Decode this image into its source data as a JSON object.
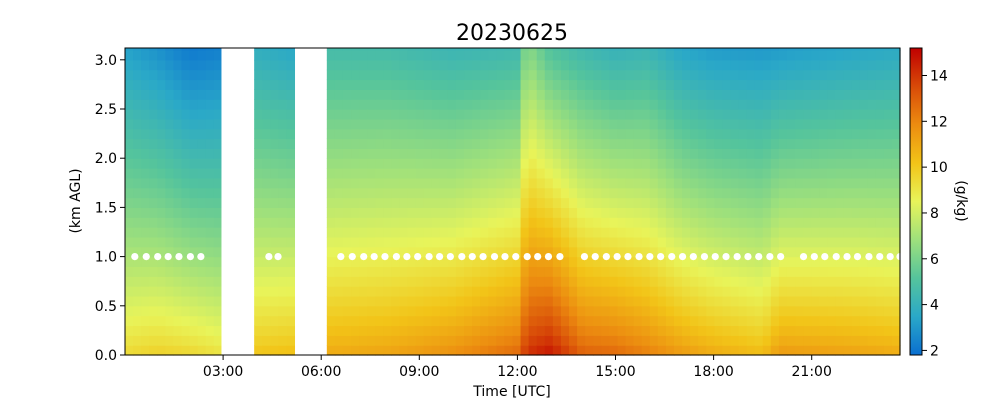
{
  "chart_data": {
    "type": "heatmap",
    "title": "20230625",
    "xlabel": "Time [UTC]",
    "ylabel": "(km AGL)",
    "colorbar_label": "(g/kg)",
    "x_range_hours": [
      0,
      23.7
    ],
    "ylim": [
      0,
      3.12
    ],
    "x_ticks": [
      {
        "hour": 3,
        "label": "03:00"
      },
      {
        "hour": 6,
        "label": "06:00"
      },
      {
        "hour": 9,
        "label": "09:00"
      },
      {
        "hour": 12,
        "label": "12:00"
      },
      {
        "hour": 15,
        "label": "15:00"
      },
      {
        "hour": 18,
        "label": "18:00"
      },
      {
        "hour": 21,
        "label": "21:00"
      }
    ],
    "y_ticks": [
      {
        "value": 0.0,
        "label": "0.0"
      },
      {
        "value": 0.5,
        "label": "0.5"
      },
      {
        "value": 1.0,
        "label": "1.0"
      },
      {
        "value": 1.5,
        "label": "1.5"
      },
      {
        "value": 2.0,
        "label": "2.0"
      },
      {
        "value": 2.5,
        "label": "2.5"
      },
      {
        "value": 3.0,
        "label": "3.0"
      }
    ],
    "colorbar": {
      "range": [
        1.8,
        15.2
      ],
      "ticks": [
        {
          "value": 2,
          "label": "2"
        },
        {
          "value": 4,
          "label": "4"
        },
        {
          "value": 6,
          "label": "6"
        },
        {
          "value": 8,
          "label": "8"
        },
        {
          "value": 10,
          "label": "10"
        },
        {
          "value": 12,
          "label": "12"
        },
        {
          "value": 14,
          "label": "14"
        }
      ],
      "colormap": [
        "#0a6fd0",
        "#2aa8c8",
        "#55c49c",
        "#9ee07c",
        "#e8f45a",
        "#f2c418",
        "#ec8c10",
        "#d84a08",
        "#c00000"
      ]
    },
    "missing_data_hours": [
      [
        2.95,
        3.88
      ],
      [
        5.2,
        6.1
      ]
    ],
    "pbl_height_km": 1.0,
    "pbl_marker_hours": [
      0.3,
      0.65,
      1.0,
      1.32,
      1.65,
      2.0,
      2.32,
      4.4,
      4.68,
      6.6,
      6.95,
      7.3,
      7.62,
      7.95,
      8.3,
      8.62,
      8.95,
      9.3,
      9.62,
      9.95,
      10.3,
      10.62,
      10.95,
      11.3,
      11.62,
      11.95,
      12.3,
      12.62,
      12.95,
      13.3,
      14.05,
      14.38,
      14.72,
      15.05,
      15.38,
      15.72,
      16.05,
      16.38,
      16.72,
      17.05,
      17.38,
      17.72,
      18.05,
      18.38,
      18.72,
      19.05,
      19.38,
      19.72,
      20.05,
      20.75,
      21.08,
      21.4,
      21.75,
      22.08,
      22.4,
      22.75,
      23.08,
      23.4,
      23.7
    ],
    "humidity_profile": {
      "surface_gkg_by_hour": [
        {
          "hour": 0.0,
          "value": 9.5
        },
        {
          "hour": 1.0,
          "value": 9.8
        },
        {
          "hour": 2.0,
          "value": 9.6
        },
        {
          "hour": 2.9,
          "value": 9.2
        },
        {
          "hour": 4.0,
          "value": 10.2
        },
        {
          "hour": 5.1,
          "value": 10.4
        },
        {
          "hour": 6.2,
          "value": 11.0
        },
        {
          "hour": 8.0,
          "value": 11.2
        },
        {
          "hour": 10.0,
          "value": 11.8
        },
        {
          "hour": 12.0,
          "value": 12.8
        },
        {
          "hour": 12.3,
          "value": 14.2
        },
        {
          "hour": 13.0,
          "value": 14.8
        },
        {
          "hour": 14.0,
          "value": 13.0
        },
        {
          "hour": 15.0,
          "value": 12.8
        },
        {
          "hour": 16.0,
          "value": 12.2
        },
        {
          "hour": 17.0,
          "value": 11.5
        },
        {
          "hour": 18.0,
          "value": 11.0
        },
        {
          "hour": 19.5,
          "value": 10.5
        },
        {
          "hour": 20.0,
          "value": 11.5
        },
        {
          "hour": 22.0,
          "value": 11.3
        },
        {
          "hour": 23.7,
          "value": 11.0
        }
      ],
      "top_gkg_by_hour": [
        {
          "hour": 0.0,
          "value": 3.3
        },
        {
          "hour": 1.0,
          "value": 2.8
        },
        {
          "hour": 2.0,
          "value": 2.1
        },
        {
          "hour": 2.9,
          "value": 2.3
        },
        {
          "hour": 4.0,
          "value": 3.8
        },
        {
          "hour": 5.1,
          "value": 3.5
        },
        {
          "hour": 6.2,
          "value": 4.6
        },
        {
          "hour": 8.0,
          "value": 4.6
        },
        {
          "hour": 10.0,
          "value": 4.2
        },
        {
          "hour": 12.0,
          "value": 4.4
        },
        {
          "hour": 12.3,
          "value": 6.4
        },
        {
          "hour": 13.0,
          "value": 5.0
        },
        {
          "hour": 14.0,
          "value": 4.4
        },
        {
          "hour": 15.0,
          "value": 4.0
        },
        {
          "hour": 16.0,
          "value": 4.2
        },
        {
          "hour": 17.0,
          "value": 3.4
        },
        {
          "hour": 18.0,
          "value": 3.1
        },
        {
          "hour": 19.5,
          "value": 3.0
        },
        {
          "hour": 20.0,
          "value": 3.1
        },
        {
          "hour": 22.0,
          "value": 3.4
        },
        {
          "hour": 23.7,
          "value": 3.6
        }
      ]
    }
  }
}
